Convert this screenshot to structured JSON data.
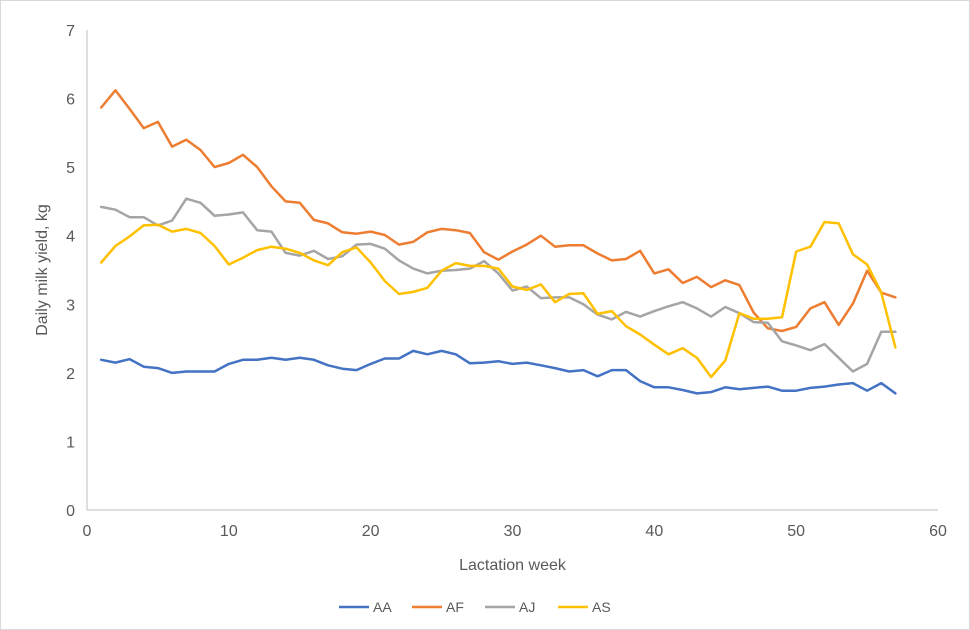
{
  "chart_data": {
    "type": "line",
    "title": "",
    "xlabel": "Lactation week",
    "ylabel": "Daily milk yield, kg",
    "xlim": [
      0,
      60
    ],
    "ylim": [
      0,
      7
    ],
    "xticks": [
      0,
      10,
      20,
      30,
      40,
      50,
      60
    ],
    "yticks": [
      0,
      1,
      2,
      3,
      4,
      5,
      6,
      7
    ],
    "grid": false,
    "legend_position": "bottom",
    "x": [
      1,
      2,
      3,
      4,
      5,
      6,
      7,
      8,
      9,
      10,
      11,
      12,
      13,
      14,
      15,
      16,
      17,
      18,
      19,
      20,
      21,
      22,
      23,
      24,
      25,
      26,
      27,
      28,
      29,
      30,
      31,
      32,
      33,
      34,
      35,
      36,
      37,
      38,
      39,
      40,
      41,
      42,
      43,
      44,
      45,
      46,
      47,
      48,
      49,
      50,
      51,
      52,
      53,
      54,
      55,
      56,
      57
    ],
    "series": [
      {
        "name": "AA",
        "color": "#4472c4",
        "values": [
          2.19,
          2.15,
          2.2,
          2.09,
          2.07,
          2.0,
          2.02,
          2.02,
          2.02,
          2.13,
          2.19,
          2.19,
          2.22,
          2.19,
          2.22,
          2.19,
          2.11,
          2.06,
          2.04,
          2.13,
          2.21,
          2.21,
          2.32,
          2.27,
          2.32,
          2.27,
          2.14,
          2.15,
          2.17,
          2.13,
          2.15,
          2.11,
          2.07,
          2.02,
          2.04,
          1.95,
          2.04,
          2.04,
          1.88,
          1.79,
          1.79,
          1.75,
          1.7,
          1.72,
          1.79,
          1.76,
          1.78,
          1.8,
          1.74,
          1.74,
          1.78,
          1.8,
          1.83,
          1.85,
          1.74,
          1.85,
          1.7
        ]
      },
      {
        "name": "AF",
        "color": "#ed7d31",
        "values": [
          5.87,
          6.12,
          5.85,
          5.57,
          5.66,
          5.3,
          5.4,
          5.25,
          5.0,
          5.06,
          5.18,
          5.0,
          4.72,
          4.5,
          4.48,
          4.23,
          4.18,
          4.05,
          4.03,
          4.06,
          4.01,
          3.87,
          3.91,
          4.05,
          4.1,
          4.08,
          4.04,
          3.76,
          3.65,
          3.77,
          3.87,
          4.0,
          3.84,
          3.86,
          3.86,
          3.74,
          3.64,
          3.66,
          3.78,
          3.45,
          3.51,
          3.31,
          3.4,
          3.25,
          3.35,
          3.28,
          2.88,
          2.65,
          2.61,
          2.67,
          2.94,
          3.03,
          2.7,
          3.01,
          3.49,
          3.17,
          3.1
        ]
      },
      {
        "name": "AJ",
        "color": "#a5a5a5",
        "values": [
          4.42,
          4.38,
          4.27,
          4.27,
          4.15,
          4.22,
          4.54,
          4.48,
          4.29,
          4.31,
          4.34,
          4.08,
          4.06,
          3.75,
          3.71,
          3.78,
          3.66,
          3.7,
          3.87,
          3.88,
          3.81,
          3.64,
          3.52,
          3.45,
          3.49,
          3.5,
          3.52,
          3.63,
          3.45,
          3.2,
          3.26,
          3.09,
          3.1,
          3.1,
          3.0,
          2.85,
          2.78,
          2.89,
          2.82,
          2.9,
          2.97,
          3.03,
          2.94,
          2.82,
          2.96,
          2.87,
          2.74,
          2.73,
          2.46,
          2.4,
          2.33,
          2.42,
          2.22,
          2.02,
          2.13,
          2.6,
          2.6
        ]
      },
      {
        "name": "AS",
        "color": "#ffc000",
        "values": [
          3.61,
          3.85,
          3.99,
          4.15,
          4.16,
          4.06,
          4.1,
          4.04,
          3.85,
          3.58,
          3.68,
          3.79,
          3.84,
          3.81,
          3.75,
          3.64,
          3.57,
          3.76,
          3.83,
          3.61,
          3.34,
          3.15,
          3.18,
          3.24,
          3.49,
          3.6,
          3.56,
          3.56,
          3.52,
          3.26,
          3.21,
          3.29,
          3.03,
          3.15,
          3.16,
          2.86,
          2.9,
          2.68,
          2.56,
          2.41,
          2.27,
          2.36,
          2.22,
          1.94,
          2.18,
          2.87,
          2.79,
          2.79,
          2.81,
          3.77,
          3.84,
          4.2,
          4.18,
          3.73,
          3.58,
          3.17,
          2.37
        ]
      }
    ]
  }
}
